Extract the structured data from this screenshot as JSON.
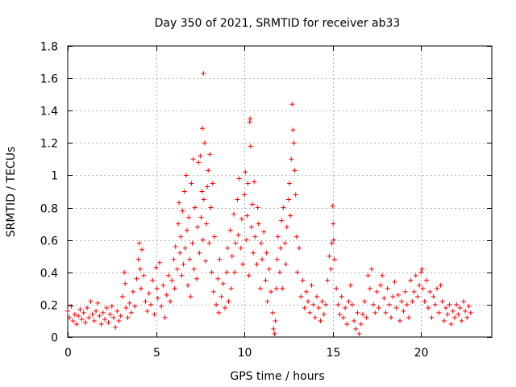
{
  "chart_data": {
    "type": "scatter",
    "title": "Day 350 of 2021, SRMTID for receiver ab33",
    "xlabel": "GPS time / hours",
    "ylabel": "SRMTID / TECUs",
    "xlim": [
      0,
      24
    ],
    "ylim": [
      0,
      1.8
    ],
    "x_ticks": [
      0,
      5,
      10,
      15,
      20
    ],
    "y_ticks": [
      0,
      0.2,
      0.4,
      0.6,
      0.8,
      1,
      1.2,
      1.4,
      1.6,
      1.8
    ],
    "x_tick_labels": [
      "0",
      "5",
      "10",
      "15",
      "20"
    ],
    "y_tick_labels": [
      "0",
      "0.2",
      "0.4",
      "0.6",
      "0.8",
      "1",
      "1.2",
      "1.4",
      "1.6",
      "1.8"
    ],
    "grid": true,
    "marker": "+",
    "marker_color": "#ff0000",
    "series": [
      {
        "name": "SRMTID",
        "points": [
          [
            0.0,
            0.16
          ],
          [
            0.1,
            0.12
          ],
          [
            0.2,
            0.19
          ],
          [
            0.3,
            0.1
          ],
          [
            0.4,
            0.14
          ],
          [
            0.5,
            0.08
          ],
          [
            0.6,
            0.13
          ],
          [
            0.7,
            0.17
          ],
          [
            0.8,
            0.11
          ],
          [
            0.9,
            0.15
          ],
          [
            1.0,
            0.09
          ],
          [
            1.1,
            0.18
          ],
          [
            1.2,
            0.12
          ],
          [
            1.3,
            0.22
          ],
          [
            1.4,
            0.14
          ],
          [
            1.5,
            0.1
          ],
          [
            1.6,
            0.16
          ],
          [
            1.7,
            0.21
          ],
          [
            1.8,
            0.13
          ],
          [
            1.9,
            0.08
          ],
          [
            2.0,
            0.15
          ],
          [
            2.1,
            0.11
          ],
          [
            2.2,
            0.18
          ],
          [
            2.3,
            0.09
          ],
          [
            2.4,
            0.14
          ],
          [
            2.5,
            0.19
          ],
          [
            2.6,
            0.12
          ],
          [
            2.7,
            0.06
          ],
          [
            2.8,
            0.16
          ],
          [
            2.9,
            0.1
          ],
          [
            3.0,
            0.13
          ],
          [
            3.1,
            0.25
          ],
          [
            3.2,
            0.4
          ],
          [
            3.25,
            0.33
          ],
          [
            3.3,
            0.18
          ],
          [
            3.4,
            0.12
          ],
          [
            3.5,
            0.21
          ],
          [
            3.6,
            0.15
          ],
          [
            3.7,
            0.28
          ],
          [
            3.8,
            0.19
          ],
          [
            3.9,
            0.36
          ],
          [
            4.0,
            0.48
          ],
          [
            4.05,
            0.58
          ],
          [
            4.1,
            0.42
          ],
          [
            4.15,
            0.3
          ],
          [
            4.2,
            0.54
          ],
          [
            4.3,
            0.38
          ],
          [
            4.4,
            0.22
          ],
          [
            4.5,
            0.16
          ],
          [
            4.6,
            0.27
          ],
          [
            4.7,
            0.2
          ],
          [
            4.8,
            0.35
          ],
          [
            4.9,
            0.14
          ],
          [
            5.0,
            0.43
          ],
          [
            5.05,
            0.3
          ],
          [
            5.1,
            0.24
          ],
          [
            5.2,
            0.46
          ],
          [
            5.3,
            0.19
          ],
          [
            5.4,
            0.32
          ],
          [
            5.5,
            0.12
          ],
          [
            5.6,
            0.26
          ],
          [
            5.7,
            0.38
          ],
          [
            5.8,
            0.22
          ],
          [
            5.9,
            0.35
          ],
          [
            6.0,
            0.48
          ],
          [
            6.05,
            0.3
          ],
          [
            6.1,
            0.56
          ],
          [
            6.2,
            0.42
          ],
          [
            6.25,
            0.7
          ],
          [
            6.3,
            0.83
          ],
          [
            6.35,
            0.52
          ],
          [
            6.4,
            0.62
          ],
          [
            6.45,
            0.38
          ],
          [
            6.5,
            0.78
          ],
          [
            6.55,
            0.45
          ],
          [
            6.6,
            0.9
          ],
          [
            6.65,
            0.55
          ],
          [
            6.7,
            1.0
          ],
          [
            6.75,
            0.66
          ],
          [
            6.8,
            0.32
          ],
          [
            6.85,
            0.74
          ],
          [
            6.9,
            0.48
          ],
          [
            6.95,
            0.25
          ],
          [
            7.0,
            0.95
          ],
          [
            7.05,
            0.58
          ],
          [
            7.1,
            1.1
          ],
          [
            7.15,
            0.42
          ],
          [
            7.2,
            0.8
          ],
          [
            7.3,
            0.36
          ],
          [
            7.35,
            0.68
          ],
          [
            7.4,
            1.08
          ],
          [
            7.45,
            0.52
          ],
          [
            7.5,
            1.12
          ],
          [
            7.55,
            0.74
          ],
          [
            7.6,
            0.9
          ],
          [
            7.62,
            1.29
          ],
          [
            7.65,
            0.6
          ],
          [
            7.68,
            1.63
          ],
          [
            7.7,
            0.85
          ],
          [
            7.75,
            1.2
          ],
          [
            7.8,
            0.47
          ],
          [
            7.85,
            0.7
          ],
          [
            7.9,
            0.93
          ],
          [
            7.95,
            1.03
          ],
          [
            8.0,
            0.58
          ],
          [
            8.05,
            1.13
          ],
          [
            8.1,
            0.8
          ],
          [
            8.15,
            0.4
          ],
          [
            8.2,
            0.95
          ],
          [
            8.25,
            0.28
          ],
          [
            8.3,
            0.62
          ],
          [
            8.4,
            0.2
          ],
          [
            8.5,
            0.36
          ],
          [
            8.55,
            0.15
          ],
          [
            8.6,
            0.48
          ],
          [
            8.7,
            0.25
          ],
          [
            8.8,
            0.33
          ],
          [
            8.9,
            0.18
          ],
          [
            9.0,
            0.4
          ],
          [
            9.05,
            0.55
          ],
          [
            9.1,
            0.22
          ],
          [
            9.2,
            0.66
          ],
          [
            9.25,
            0.3
          ],
          [
            9.3,
            0.5
          ],
          [
            9.4,
            0.76
          ],
          [
            9.45,
            0.4
          ],
          [
            9.5,
            0.58
          ],
          [
            9.6,
            0.85
          ],
          [
            9.65,
            0.63
          ],
          [
            9.7,
            0.98
          ],
          [
            9.8,
            0.55
          ],
          [
            9.85,
            0.73
          ],
          [
            9.9,
            0.45
          ],
          [
            10.0,
            0.88
          ],
          [
            10.05,
            1.02
          ],
          [
            10.1,
            0.6
          ],
          [
            10.15,
            0.75
          ],
          [
            10.2,
            0.95
          ],
          [
            10.25,
            0.38
          ],
          [
            10.3,
            1.33
          ],
          [
            10.32,
            1.35
          ],
          [
            10.35,
            1.18
          ],
          [
            10.4,
            0.68
          ],
          [
            10.45,
            0.82
          ],
          [
            10.5,
            0.52
          ],
          [
            10.55,
            0.96
          ],
          [
            10.6,
            0.62
          ],
          [
            10.7,
            0.45
          ],
          [
            10.75,
            0.8
          ],
          [
            10.8,
            0.7
          ],
          [
            10.9,
            0.3
          ],
          [
            10.95,
            0.58
          ],
          [
            11.0,
            0.48
          ],
          [
            11.1,
            0.65
          ],
          [
            11.2,
            0.35
          ],
          [
            11.25,
            0.52
          ],
          [
            11.3,
            0.22
          ],
          [
            11.4,
            0.42
          ],
          [
            11.5,
            0.28
          ],
          [
            11.6,
            0.15
          ],
          [
            11.65,
            0.05
          ],
          [
            11.7,
            0.02
          ],
          [
            11.75,
            0.1
          ],
          [
            11.8,
            0.3
          ],
          [
            11.85,
            0.48
          ],
          [
            11.9,
            0.62
          ],
          [
            12.0,
            0.4
          ],
          [
            12.05,
            0.55
          ],
          [
            12.1,
            0.72
          ],
          [
            12.15,
            0.3
          ],
          [
            12.2,
            0.8
          ],
          [
            12.3,
            0.58
          ],
          [
            12.35,
            0.45
          ],
          [
            12.4,
            0.68
          ],
          [
            12.5,
            0.85
          ],
          [
            12.55,
            0.95
          ],
          [
            12.6,
            0.75
          ],
          [
            12.65,
            1.1
          ],
          [
            12.7,
            1.44
          ],
          [
            12.75,
            1.28
          ],
          [
            12.8,
            1.2
          ],
          [
            12.85,
            1.03
          ],
          [
            12.9,
            0.88
          ],
          [
            12.95,
            0.62
          ],
          [
            13.0,
            0.4
          ],
          [
            13.1,
            0.55
          ],
          [
            13.2,
            0.25
          ],
          [
            13.3,
            0.35
          ],
          [
            13.4,
            0.18
          ],
          [
            13.5,
            0.28
          ],
          [
            13.6,
            0.22
          ],
          [
            13.7,
            0.15
          ],
          [
            13.8,
            0.32
          ],
          [
            13.9,
            0.2
          ],
          [
            14.0,
            0.12
          ],
          [
            14.1,
            0.25
          ],
          [
            14.2,
            0.18
          ],
          [
            14.3,
            0.1
          ],
          [
            14.4,
            0.22
          ],
          [
            14.5,
            0.14
          ],
          [
            14.6,
            0.2
          ],
          [
            14.7,
            0.35
          ],
          [
            14.8,
            0.5
          ],
          [
            14.9,
            0.42
          ],
          [
            14.95,
            0.58
          ],
          [
            15.0,
            0.81
          ],
          [
            15.02,
            0.7
          ],
          [
            15.05,
            0.6
          ],
          [
            15.1,
            0.48
          ],
          [
            15.2,
            0.3
          ],
          [
            15.3,
            0.2
          ],
          [
            15.4,
            0.14
          ],
          [
            15.5,
            0.25
          ],
          [
            15.6,
            0.12
          ],
          [
            15.7,
            0.18
          ],
          [
            15.8,
            0.08
          ],
          [
            15.9,
            0.22
          ],
          [
            16.0,
            0.32
          ],
          [
            16.1,
            0.2
          ],
          [
            16.2,
            0.1
          ],
          [
            16.3,
            0.05
          ],
          [
            16.4,
            0.15
          ],
          [
            16.5,
            0.02
          ],
          [
            16.6,
            0.08
          ],
          [
            16.7,
            0.14
          ],
          [
            16.8,
            0.22
          ],
          [
            16.9,
            0.12
          ],
          [
            17.0,
            0.38
          ],
          [
            17.1,
            0.3
          ],
          [
            17.2,
            0.42
          ],
          [
            17.3,
            0.2
          ],
          [
            17.4,
            0.15
          ],
          [
            17.5,
            0.28
          ],
          [
            17.6,
            0.18
          ],
          [
            17.7,
            0.32
          ],
          [
            17.8,
            0.38
          ],
          [
            17.9,
            0.24
          ],
          [
            18.0,
            0.15
          ],
          [
            18.1,
            0.3
          ],
          [
            18.2,
            0.2
          ],
          [
            18.3,
            0.12
          ],
          [
            18.4,
            0.25
          ],
          [
            18.5,
            0.34
          ],
          [
            18.6,
            0.18
          ],
          [
            18.7,
            0.26
          ],
          [
            18.8,
            0.1
          ],
          [
            18.9,
            0.22
          ],
          [
            19.0,
            0.16
          ],
          [
            19.1,
            0.28
          ],
          [
            19.2,
            0.2
          ],
          [
            19.3,
            0.12
          ],
          [
            19.4,
            0.35
          ],
          [
            19.5,
            0.22
          ],
          [
            19.6,
            0.28
          ],
          [
            19.7,
            0.38
          ],
          [
            19.8,
            0.25
          ],
          [
            19.9,
            0.32
          ],
          [
            20.0,
            0.4
          ],
          [
            20.05,
            0.42
          ],
          [
            20.1,
            0.3
          ],
          [
            20.2,
            0.22
          ],
          [
            20.3,
            0.35
          ],
          [
            20.4,
            0.18
          ],
          [
            20.5,
            0.28
          ],
          [
            20.6,
            0.12
          ],
          [
            20.7,
            0.25
          ],
          [
            20.8,
            0.2
          ],
          [
            20.9,
            0.3
          ],
          [
            21.0,
            0.15
          ],
          [
            21.1,
            0.32
          ],
          [
            21.2,
            0.22
          ],
          [
            21.3,
            0.1
          ],
          [
            21.4,
            0.18
          ],
          [
            21.5,
            0.14
          ],
          [
            21.6,
            0.2
          ],
          [
            21.7,
            0.08
          ],
          [
            21.8,
            0.16
          ],
          [
            21.9,
            0.12
          ],
          [
            22.0,
            0.2
          ],
          [
            22.1,
            0.14
          ],
          [
            22.2,
            0.18
          ],
          [
            22.3,
            0.1
          ],
          [
            22.4,
            0.22
          ],
          [
            22.5,
            0.16
          ],
          [
            22.6,
            0.12
          ],
          [
            22.7,
            0.19
          ],
          [
            22.8,
            0.15
          ]
        ]
      }
    ]
  }
}
